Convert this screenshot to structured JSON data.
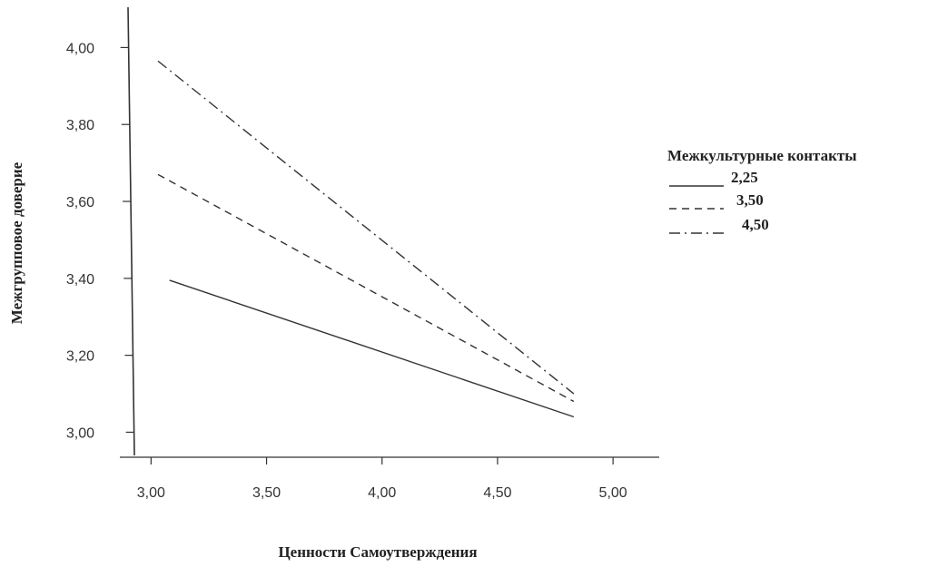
{
  "chart_data": {
    "type": "line",
    "title": "",
    "xlabel": "Ценности Самоутверждения",
    "ylabel": "Межгрупповое доверие",
    "xlim": [
      2.92,
      5.2
    ],
    "ylim": [
      2.935,
      4.1
    ],
    "x_ticks": [
      "3,00",
      "3,50",
      "4,00",
      "4,50",
      "5,00"
    ],
    "x_tick_values": [
      3.0,
      3.5,
      4.0,
      4.5,
      5.0
    ],
    "y_ticks": [
      "3,00",
      "3,20",
      "3,40",
      "3,60",
      "3,80",
      "4,00"
    ],
    "y_tick_values": [
      3.0,
      3.2,
      3.4,
      3.6,
      3.8,
      4.0
    ],
    "legend": {
      "title": "Межкультурные контакты",
      "placement": "right",
      "entries": [
        {
          "swatch": "_____",
          "label": "2,25"
        },
        {
          "swatch": "_ _ _ _",
          "label": "3,50"
        },
        {
          "swatch": "_ . _ . _",
          "label": "4,50"
        }
      ]
    },
    "series": [
      {
        "name": "2,25",
        "line_style": "solid",
        "x": [
          3.08,
          4.83
        ],
        "values": [
          3.395,
          3.04
        ]
      },
      {
        "name": "3,50",
        "line_style": "dashed",
        "x": [
          3.03,
          4.83
        ],
        "values": [
          3.67,
          3.08
        ]
      },
      {
        "name": "4,50",
        "line_style": "dashdot",
        "x": [
          3.03,
          4.83
        ],
        "values": [
          3.965,
          3.1
        ]
      }
    ],
    "grid": false,
    "colors": {
      "lines": "#333333",
      "axes": "#333333"
    }
  }
}
